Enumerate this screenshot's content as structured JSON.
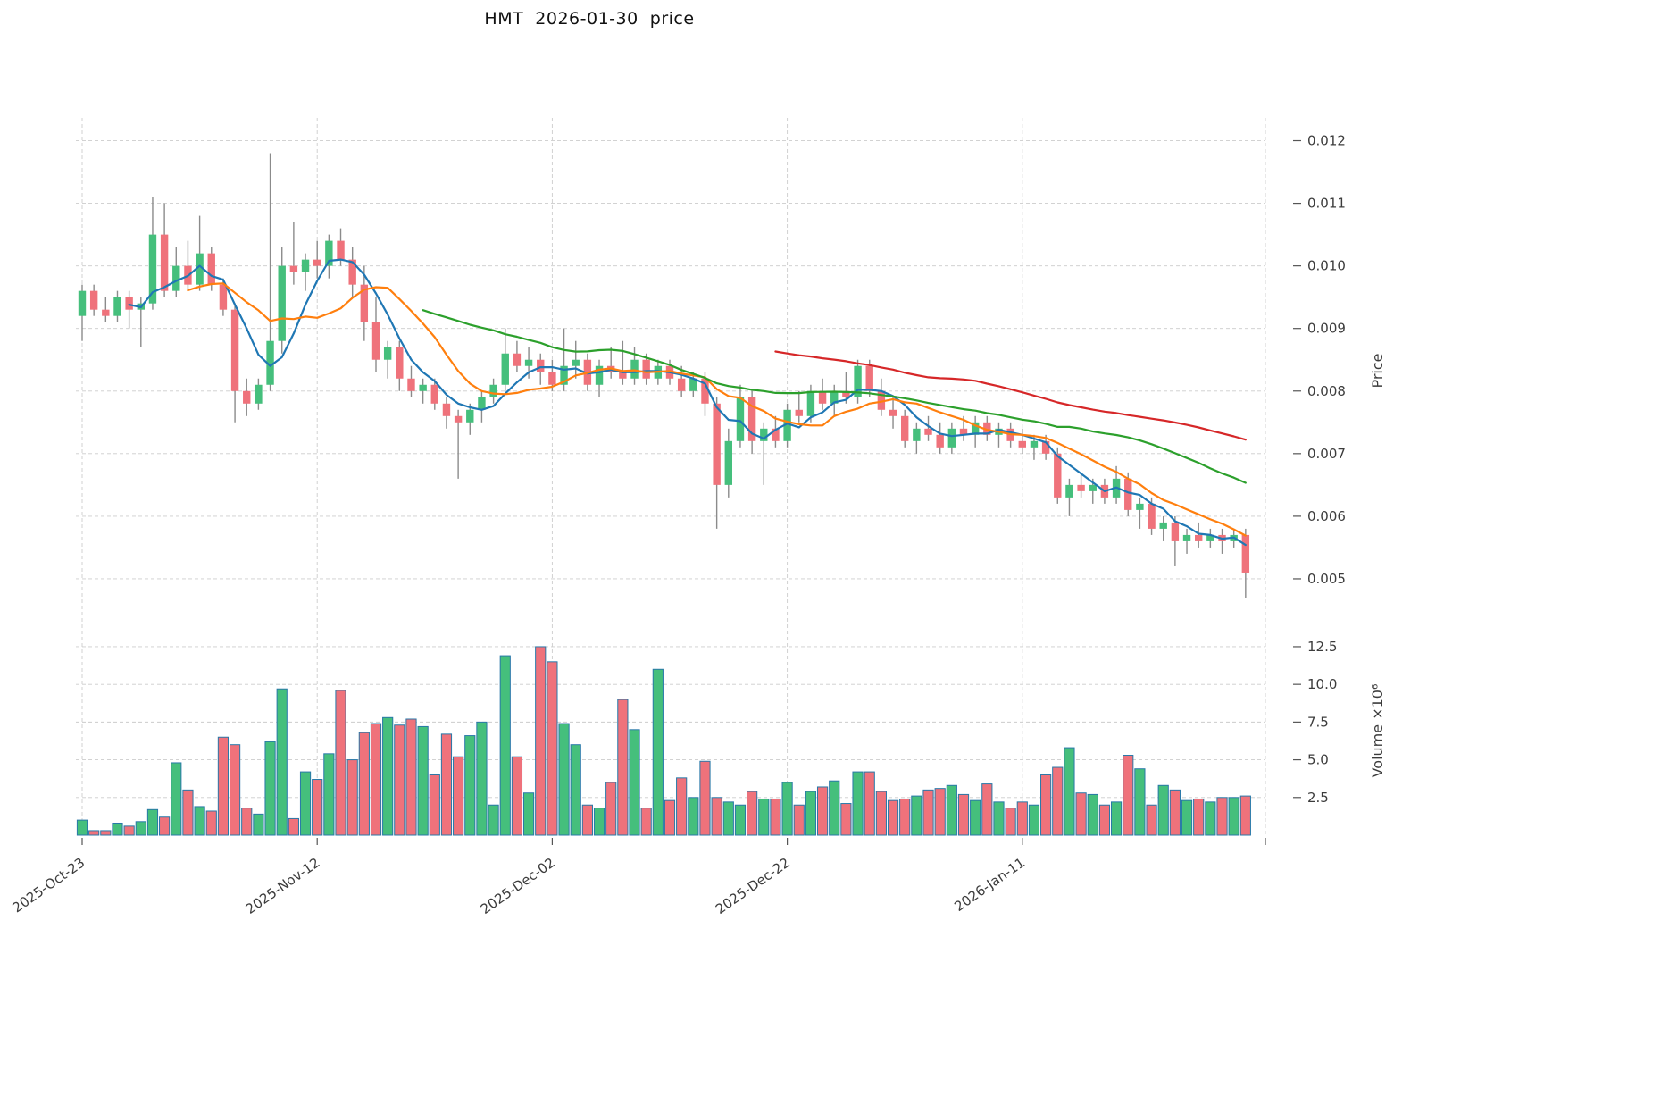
{
  "title": "HMT  2026-01-30  price",
  "chart_data": {
    "type": "candlestick",
    "symbol": "HMT",
    "as_of_date": "2026-01-30",
    "x_ticks": [
      {
        "index": 0,
        "label": "2025-Oct-23"
      },
      {
        "index": 20,
        "label": "2025-Nov-12"
      },
      {
        "index": 40,
        "label": "2025-Dec-02"
      },
      {
        "index": 60,
        "label": "2025-Dec-22"
      },
      {
        "index": 80,
        "label": "2026-Jan-11"
      }
    ],
    "price_axis": {
      "title": "Price",
      "tick_values": [
        0.005,
        0.006,
        0.007,
        0.008,
        0.009,
        0.01,
        0.011,
        0.012
      ],
      "tick_labels": [
        "0.005",
        "0.006",
        "0.007",
        "0.008",
        "0.009",
        "0.010",
        "0.011",
        "0.012"
      ],
      "range": [
        0.0044,
        0.01225
      ]
    },
    "volume_axis": {
      "title": "Volume ×10⁶",
      "tick_values": [
        2.5,
        5.0,
        7.5,
        10.0,
        12.5
      ],
      "tick_labels": [
        "2.5",
        "5.0",
        "7.5",
        "10.0",
        "12.5"
      ],
      "range": [
        0,
        13.8
      ]
    },
    "moving_averages": [
      {
        "period": 5,
        "color": "#1f77b4"
      },
      {
        "period": 10,
        "color": "#ff7f0e"
      },
      {
        "period": 30,
        "color": "#2ca02c"
      },
      {
        "period": 60,
        "color": "#d62728"
      }
    ],
    "colors": {
      "up": "#45bf7c",
      "down": "#ef727b",
      "wick": "#8b8b8b",
      "grid": "#cccccc",
      "volume_edge": "#2878a8",
      "text": "#3c3c3c"
    },
    "series": {
      "dates": [
        "2025-10-23",
        "2025-10-24",
        "2025-10-25",
        "2025-10-26",
        "2025-10-27",
        "2025-10-28",
        "2025-10-29",
        "2025-10-30",
        "2025-10-31",
        "2025-11-01",
        "2025-11-02",
        "2025-11-03",
        "2025-11-04",
        "2025-11-05",
        "2025-11-06",
        "2025-11-07",
        "2025-11-08",
        "2025-11-09",
        "2025-11-10",
        "2025-11-11",
        "2025-11-12",
        "2025-11-13",
        "2025-11-14",
        "2025-11-15",
        "2025-11-16",
        "2025-11-17",
        "2025-11-18",
        "2025-11-19",
        "2025-11-20",
        "2025-11-21",
        "2025-11-22",
        "2025-11-23",
        "2025-11-24",
        "2025-11-25",
        "2025-11-26",
        "2025-11-27",
        "2025-11-28",
        "2025-11-29",
        "2025-11-30",
        "2025-12-01",
        "2025-12-02",
        "2025-12-03",
        "2025-12-04",
        "2025-12-05",
        "2025-12-06",
        "2025-12-07",
        "2025-12-08",
        "2025-12-09",
        "2025-12-10",
        "2025-12-11",
        "2025-12-12",
        "2025-12-13",
        "2025-12-14",
        "2025-12-15",
        "2025-12-16",
        "2025-12-17",
        "2025-12-18",
        "2025-12-19",
        "2025-12-20",
        "2025-12-21",
        "2025-12-22",
        "2025-12-23",
        "2025-12-24",
        "2025-12-25",
        "2025-12-26",
        "2025-12-27",
        "2025-12-28",
        "2025-12-29",
        "2025-12-30",
        "2025-12-31",
        "2026-01-01",
        "2026-01-02",
        "2026-01-03",
        "2026-01-04",
        "2026-01-05",
        "2026-01-06",
        "2026-01-07",
        "2026-01-08",
        "2026-01-09",
        "2026-01-10",
        "2026-01-11",
        "2026-01-12",
        "2026-01-13",
        "2026-01-14",
        "2026-01-15",
        "2026-01-16",
        "2026-01-17",
        "2026-01-18",
        "2026-01-19",
        "2026-01-20",
        "2026-01-21",
        "2026-01-22",
        "2026-01-23",
        "2026-01-24",
        "2026-01-25",
        "2026-01-26",
        "2026-01-27",
        "2026-01-28",
        "2026-01-29",
        "2026-01-30"
      ],
      "open": [
        0.0092,
        0.0096,
        0.0093,
        0.0092,
        0.0095,
        0.0093,
        0.0094,
        0.0105,
        0.0096,
        0.01,
        0.0097,
        0.0102,
        0.0097,
        0.0093,
        0.008,
        0.0078,
        0.0081,
        0.0088,
        0.01,
        0.0099,
        0.0101,
        0.01,
        0.0104,
        0.0101,
        0.0097,
        0.0091,
        0.0085,
        0.0087,
        0.0082,
        0.008,
        0.0081,
        0.0078,
        0.0076,
        0.0075,
        0.0077,
        0.0079,
        0.0081,
        0.0086,
        0.0084,
        0.0085,
        0.0083,
        0.0081,
        0.0084,
        0.0085,
        0.0081,
        0.0084,
        0.0083,
        0.0082,
        0.0085,
        0.0082,
        0.0084,
        0.0082,
        0.008,
        0.0082,
        0.0078,
        0.0065,
        0.0072,
        0.0079,
        0.0072,
        0.0074,
        0.0072,
        0.0077,
        0.0076,
        0.008,
        0.0078,
        0.008,
        0.0079,
        0.0084,
        0.008,
        0.0077,
        0.0076,
        0.0072,
        0.0074,
        0.0073,
        0.0071,
        0.0074,
        0.0073,
        0.0075,
        0.0073,
        0.0074,
        0.0072,
        0.0071,
        0.0072,
        0.007,
        0.0063,
        0.0065,
        0.0064,
        0.0065,
        0.0063,
        0.0066,
        0.0061,
        0.0062,
        0.0058,
        0.0059,
        0.0056,
        0.0057,
        0.0056,
        0.0057,
        0.0056,
        0.0057
      ],
      "high": [
        0.0097,
        0.0097,
        0.0095,
        0.0096,
        0.0096,
        0.0095,
        0.0111,
        0.011,
        0.0103,
        0.0104,
        0.0108,
        0.0103,
        0.0098,
        0.0094,
        0.0082,
        0.0082,
        0.0118,
        0.0103,
        0.0107,
        0.0102,
        0.0104,
        0.0105,
        0.0106,
        0.0103,
        0.01,
        0.0095,
        0.0088,
        0.0088,
        0.0084,
        0.0082,
        0.0082,
        0.0079,
        0.0077,
        0.0078,
        0.008,
        0.0082,
        0.009,
        0.0088,
        0.0087,
        0.0086,
        0.0085,
        0.009,
        0.0088,
        0.0086,
        0.0085,
        0.0087,
        0.0088,
        0.0087,
        0.0086,
        0.0085,
        0.0085,
        0.0084,
        0.0083,
        0.0083,
        0.0079,
        0.0074,
        0.0081,
        0.008,
        0.0075,
        0.0076,
        0.0078,
        0.008,
        0.0081,
        0.0082,
        0.0081,
        0.0083,
        0.0085,
        0.0085,
        0.0082,
        0.0079,
        0.0077,
        0.0075,
        0.0076,
        0.0075,
        0.0075,
        0.0076,
        0.0076,
        0.0076,
        0.0075,
        0.0075,
        0.0074,
        0.0073,
        0.0073,
        0.0071,
        0.0066,
        0.0067,
        0.0066,
        0.0066,
        0.0068,
        0.0067,
        0.0063,
        0.0063,
        0.006,
        0.006,
        0.0058,
        0.0059,
        0.0058,
        0.0058,
        0.0058,
        0.0058
      ],
      "low": [
        0.0088,
        0.0092,
        0.0091,
        0.0091,
        0.009,
        0.0087,
        0.0093,
        0.0095,
        0.0095,
        0.0096,
        0.0096,
        0.0096,
        0.0092,
        0.0075,
        0.0076,
        0.0077,
        0.008,
        0.0086,
        0.0097,
        0.0096,
        0.0098,
        0.0098,
        0.01,
        0.0095,
        0.0088,
        0.0083,
        0.0082,
        0.008,
        0.0079,
        0.0078,
        0.0077,
        0.0074,
        0.0066,
        0.0073,
        0.0075,
        0.0078,
        0.008,
        0.0083,
        0.0082,
        0.0081,
        0.008,
        0.008,
        0.0082,
        0.008,
        0.0079,
        0.0082,
        0.0081,
        0.0081,
        0.0081,
        0.0081,
        0.0081,
        0.0079,
        0.0079,
        0.0076,
        0.0058,
        0.0063,
        0.0071,
        0.007,
        0.0065,
        0.0071,
        0.0071,
        0.0075,
        0.0075,
        0.0077,
        0.0076,
        0.0078,
        0.0078,
        0.0079,
        0.0076,
        0.0074,
        0.0071,
        0.007,
        0.0072,
        0.007,
        0.007,
        0.0072,
        0.0071,
        0.0072,
        0.0071,
        0.0071,
        0.007,
        0.0069,
        0.0069,
        0.0062,
        0.006,
        0.0063,
        0.0062,
        0.0062,
        0.0062,
        0.006,
        0.0058,
        0.0057,
        0.0056,
        0.0052,
        0.0054,
        0.0055,
        0.0055,
        0.0054,
        0.0055,
        0.0047
      ],
      "close": [
        0.0096,
        0.0093,
        0.0092,
        0.0095,
        0.0093,
        0.0094,
        0.0105,
        0.0096,
        0.01,
        0.0097,
        0.0102,
        0.0097,
        0.0093,
        0.008,
        0.0078,
        0.0081,
        0.0088,
        0.01,
        0.0099,
        0.0101,
        0.01,
        0.0104,
        0.0101,
        0.0097,
        0.0091,
        0.0085,
        0.0087,
        0.0082,
        0.008,
        0.0081,
        0.0078,
        0.0076,
        0.0075,
        0.0077,
        0.0079,
        0.0081,
        0.0086,
        0.0084,
        0.0085,
        0.0083,
        0.0081,
        0.0084,
        0.0085,
        0.0081,
        0.0084,
        0.0083,
        0.0082,
        0.0085,
        0.0082,
        0.0084,
        0.0082,
        0.008,
        0.0082,
        0.0078,
        0.0065,
        0.0072,
        0.0079,
        0.0072,
        0.0074,
        0.0072,
        0.0077,
        0.0076,
        0.008,
        0.0078,
        0.008,
        0.0079,
        0.0084,
        0.008,
        0.0077,
        0.0076,
        0.0072,
        0.0074,
        0.0073,
        0.0071,
        0.0074,
        0.0073,
        0.0075,
        0.0073,
        0.0074,
        0.0072,
        0.0071,
        0.0072,
        0.007,
        0.0063,
        0.0065,
        0.0064,
        0.0065,
        0.0063,
        0.0066,
        0.0061,
        0.0062,
        0.0058,
        0.0059,
        0.0056,
        0.0057,
        0.0056,
        0.0057,
        0.0056,
        0.0057,
        0.0051
      ],
      "volume_millions": [
        1.0,
        0.3,
        0.3,
        0.8,
        0.6,
        0.9,
        1.7,
        1.2,
        4.8,
        3.0,
        1.9,
        1.6,
        6.5,
        6.0,
        1.8,
        1.4,
        6.2,
        9.7,
        1.1,
        4.2,
        3.7,
        5.4,
        9.6,
        5.0,
        6.8,
        7.4,
        7.8,
        7.3,
        7.7,
        7.2,
        4.0,
        6.7,
        5.2,
        6.6,
        7.5,
        2.0,
        11.9,
        5.2,
        2.8,
        12.5,
        11.5,
        7.4,
        6.0,
        2.0,
        1.8,
        3.5,
        9.0,
        7.0,
        1.8,
        11.0,
        2.3,
        3.8,
        2.5,
        4.9,
        2.5,
        2.2,
        2.0,
        2.9,
        2.4,
        2.4,
        3.5,
        2.0,
        2.9,
        3.2,
        3.6,
        2.1,
        4.2,
        4.2,
        2.9,
        2.3,
        2.4,
        2.6,
        3.0,
        3.1,
        3.3,
        2.7,
        2.3,
        3.4,
        2.2,
        1.8,
        2.2,
        2.0,
        4.0,
        4.5,
        5.8,
        2.8,
        2.7,
        2.0,
        2.2,
        5.3,
        4.4,
        2.0,
        3.3,
        3.0,
        2.3,
        2.4,
        2.2,
        2.5,
        2.5,
        2.6
      ]
    }
  }
}
